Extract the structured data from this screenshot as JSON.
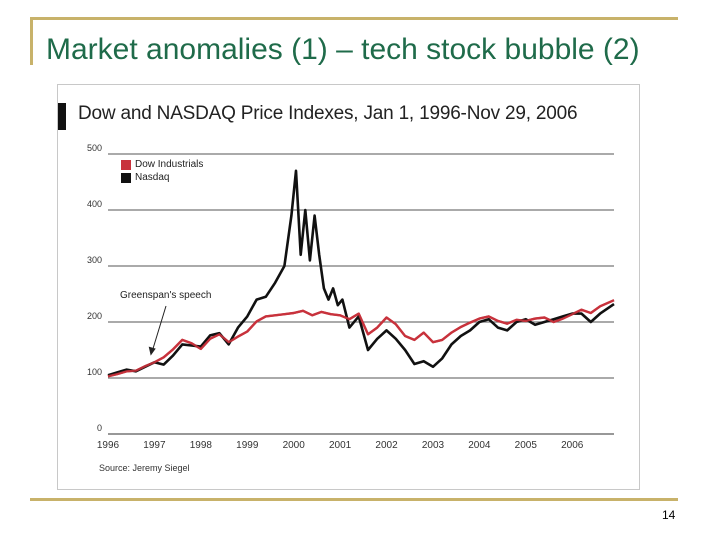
{
  "slide": {
    "title": "Market anomalies (1) – tech stock bubble (2)",
    "page_number": "14"
  },
  "chart_data": {
    "type": "line",
    "title": "Dow and NASDAQ Price Indexes, Jan 1, 1996-Nov 29, 2006",
    "xlim": [
      1996,
      2006.9
    ],
    "ylim": [
      0,
      500
    ],
    "y_ticks": [
      0,
      100,
      200,
      300,
      400,
      500
    ],
    "x_ticks": [
      1996,
      1997,
      1998,
      1999,
      2000,
      2001,
      2002,
      2003,
      2004,
      2005,
      2006
    ],
    "x_tick_labels": [
      "1996",
      "1997",
      "1998",
      "1999",
      "2000",
      "2001",
      "2002",
      "2003",
      "2004",
      "2005",
      "2006"
    ],
    "grid": "horizontal",
    "legend_position": "top-left",
    "source": "Source: Jeremy Siegel",
    "annotation": {
      "text": "Greenspan's speech",
      "x": 1996.92,
      "y": 140
    },
    "series": [
      {
        "name": "Dow Industrials",
        "color": "#c8323c",
        "x": [
          1996.0,
          1996.2,
          1996.4,
          1996.6,
          1996.8,
          1997.0,
          1997.2,
          1997.4,
          1997.6,
          1997.8,
          1998.0,
          1998.2,
          1998.4,
          1998.6,
          1998.8,
          1999.0,
          1999.2,
          1999.4,
          1999.6,
          1999.8,
          2000.0,
          2000.2,
          2000.4,
          2000.6,
          2000.8,
          2001.0,
          2001.2,
          2001.4,
          2001.6,
          2001.8,
          2002.0,
          2002.2,
          2002.4,
          2002.6,
          2002.8,
          2003.0,
          2003.2,
          2003.4,
          2003.6,
          2003.8,
          2004.0,
          2004.2,
          2004.4,
          2004.6,
          2004.8,
          2005.0,
          2005.2,
          2005.4,
          2005.6,
          2005.8,
          2006.0,
          2006.2,
          2006.4,
          2006.6,
          2006.9
        ],
        "values": [
          103,
          107,
          112,
          113,
          121,
          128,
          137,
          151,
          168,
          162,
          152,
          170,
          178,
          164,
          174,
          183,
          201,
          210,
          212,
          214,
          216,
          220,
          212,
          218,
          214,
          212,
          205,
          215,
          178,
          190,
          208,
          196,
          175,
          168,
          181,
          164,
          168,
          181,
          191,
          199,
          206,
          210,
          202,
          197,
          204,
          202,
          206,
          208,
          200,
          206,
          214,
          222,
          216,
          228,
          239
        ]
      },
      {
        "name": "Nasdaq",
        "color": "#111111",
        "x": [
          1996.0,
          1996.2,
          1996.4,
          1996.6,
          1996.8,
          1997.0,
          1997.2,
          1997.4,
          1997.6,
          1997.8,
          1998.0,
          1998.2,
          1998.4,
          1998.6,
          1998.8,
          1999.0,
          1999.2,
          1999.4,
          1999.6,
          1999.8,
          1999.95,
          2000.05,
          2000.15,
          2000.25,
          2000.35,
          2000.45,
          2000.55,
          2000.65,
          2000.75,
          2000.85,
          2000.95,
          2001.05,
          2001.2,
          2001.4,
          2001.6,
          2001.8,
          2002.0,
          2002.2,
          2002.4,
          2002.6,
          2002.8,
          2003.0,
          2003.2,
          2003.4,
          2003.6,
          2003.8,
          2004.0,
          2004.2,
          2004.4,
          2004.6,
          2004.8,
          2005.0,
          2005.2,
          2005.4,
          2005.6,
          2005.8,
          2006.0,
          2006.2,
          2006.4,
          2006.6,
          2006.9
        ],
        "values": [
          105,
          110,
          115,
          112,
          120,
          128,
          124,
          140,
          160,
          158,
          156,
          176,
          180,
          160,
          190,
          210,
          240,
          245,
          270,
          300,
          390,
          470,
          320,
          400,
          310,
          390,
          320,
          260,
          240,
          260,
          230,
          240,
          190,
          210,
          150,
          170,
          185,
          170,
          150,
          125,
          130,
          120,
          135,
          160,
          175,
          185,
          200,
          205,
          190,
          185,
          200,
          205,
          195,
          200,
          205,
          210,
          215,
          215,
          200,
          215,
          232
        ]
      }
    ]
  }
}
